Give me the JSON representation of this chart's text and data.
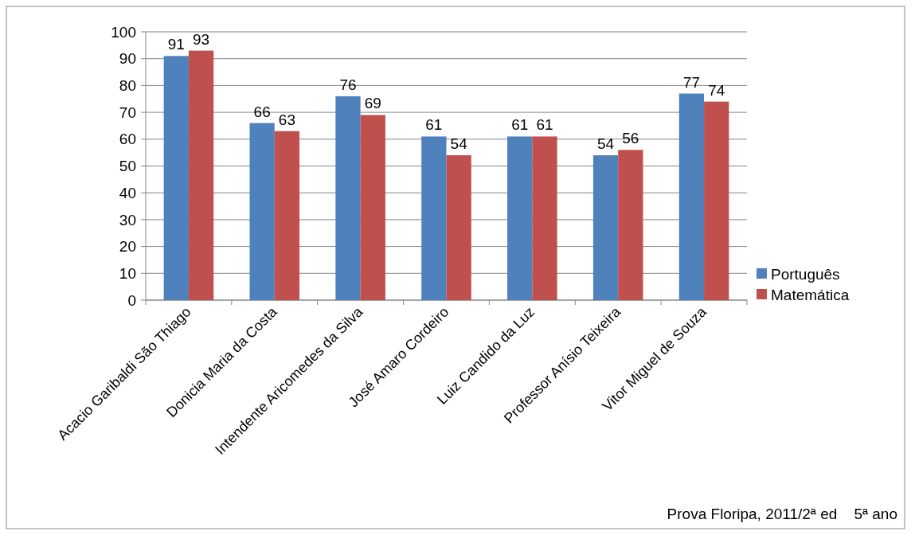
{
  "chart_data": {
    "type": "bar",
    "categories": [
      "Acacio Garibaldi São Thiago",
      "Donicia Maria da Costa",
      "Intendente Aricomedes da Silva",
      "José Amaro Cordeiro",
      "Luiz Candido da Luz",
      "Professor Anísio Teixeira",
      "Vitor Miguel de Souza"
    ],
    "series": [
      {
        "name": "Português",
        "color": "#4f81bd",
        "values": [
          91,
          66,
          76,
          61,
          61,
          54,
          77
        ]
      },
      {
        "name": "Matemática",
        "color": "#c0504d",
        "values": [
          93,
          63,
          69,
          54,
          61,
          56,
          74
        ]
      }
    ],
    "ylim": [
      0,
      100
    ],
    "yticks": [
      0,
      10,
      20,
      30,
      40,
      50,
      60,
      70,
      80,
      90,
      100
    ],
    "grid": "y",
    "legend": "right",
    "data_labels": true,
    "annotations": [
      "Prova Floripa, 2011/2ª ed    5ª ano"
    ]
  }
}
